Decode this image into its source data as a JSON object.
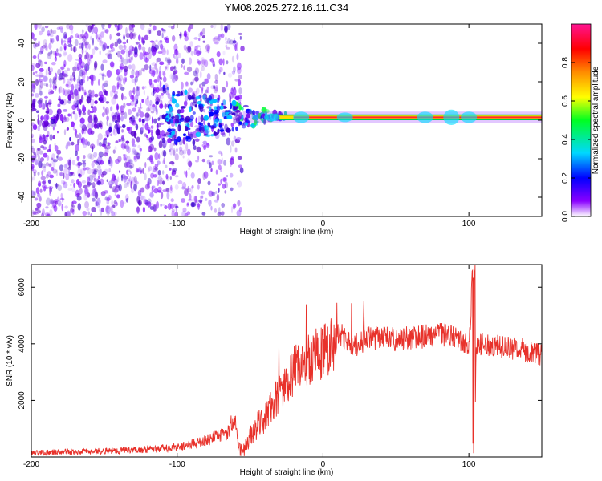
{
  "title": "YM08.2025.272.16.11.C34",
  "colors": {
    "snr_line": "#e8312a",
    "spectrum_band": "#ff2a2a",
    "band_edge": "#00cc44",
    "axis": "#000000"
  },
  "chart_data": [
    {
      "type": "heatmap",
      "name": "spectrogram",
      "title": "YM08.2025.272.16.11.C34",
      "xlabel": "Height of straight line (km)",
      "ylabel": "Frequency (Hz)",
      "xlim": [
        -200,
        150
      ],
      "ylim": [
        -50,
        50
      ],
      "x_ticks": [
        -200,
        -100,
        0,
        100
      ],
      "x_tick_labels": [
        "-200",
        "-100",
        "0",
        "100"
      ],
      "y_ticks": [
        -40,
        -20,
        0,
        20,
        40
      ],
      "y_tick_labels": [
        "-40",
        "-20",
        "0",
        "20",
        "40"
      ],
      "grid": false,
      "band": {
        "x_start": -55,
        "x_end": 150,
        "y_center": 1.5,
        "half_width": 1.5
      },
      "colorbar": {
        "label": "Normalized spectral amplitude",
        "range": [
          0,
          1
        ],
        "ticks": [
          0.0,
          0.2,
          0.4,
          0.6,
          0.8
        ],
        "tick_labels": [
          "0.0",
          "0.2",
          "0.4",
          "0.6",
          "0.8"
        ],
        "stops": [
          "#ffffff",
          "#8a00ff",
          "#0000ff",
          "#00d8ff",
          "#00ff20",
          "#ffff00",
          "#ff8c00",
          "#ff0000",
          "#ff1493"
        ]
      }
    },
    {
      "type": "line",
      "name": "snr",
      "xlabel": "Height of straight line (km)",
      "ylabel": "SNR (10 * v/v)",
      "xlim": [
        -200,
        150
      ],
      "ylim": [
        0,
        6800
      ],
      "x_ticks": [
        -200,
        -100,
        0,
        100
      ],
      "x_tick_labels": [
        "-200",
        "-100",
        "0",
        "100"
      ],
      "y_ticks": [
        2000,
        4000,
        6000
      ],
      "y_tick_labels": [
        "2000",
        "4000",
        "6000"
      ],
      "grid": false,
      "series": [
        {
          "name": "SNR",
          "x": [
            -200,
            -180,
            -160,
            -140,
            -120,
            -110,
            -100,
            -90,
            -80,
            -70,
            -65,
            -61,
            -58,
            -55,
            -50,
            -45,
            -40,
            -35,
            -30,
            -25,
            -20,
            -15,
            -10,
            -5,
            0,
            5,
            10,
            15,
            20,
            25,
            30,
            40,
            50,
            60,
            70,
            80,
            85,
            90,
            95,
            100,
            103,
            104,
            105,
            110,
            120,
            130,
            140,
            150
          ],
          "y": [
            150,
            170,
            200,
            230,
            270,
            300,
            350,
            450,
            600,
            750,
            900,
            1400,
            300,
            200,
            700,
            1100,
            1400,
            1800,
            2200,
            2600,
            3000,
            3200,
            3500,
            3600,
            3700,
            4000,
            4400,
            4200,
            3900,
            4000,
            4200,
            4200,
            4150,
            4200,
            4250,
            4300,
            4300,
            4200,
            4050,
            3950,
            6800,
            300,
            3900,
            4000,
            3900,
            3850,
            3750,
            3600
          ]
        }
      ]
    }
  ]
}
